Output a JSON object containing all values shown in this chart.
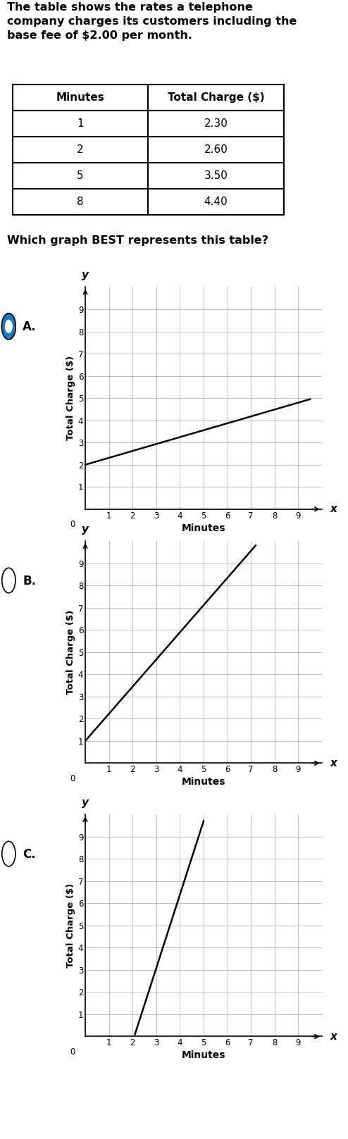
{
  "title_text": "The table shows the rates a telephone\ncompany charges its customers including the\nbase fee of $2.00 per month.",
  "table_headers": [
    "Minutes",
    "Total Charge ($)"
  ],
  "table_data": [
    [
      1,
      2.3
    ],
    [
      2,
      2.6
    ],
    [
      5,
      3.5
    ],
    [
      8,
      4.4
    ]
  ],
  "question_text": "Which graph BEST represents this table?",
  "graphs": [
    {
      "label": "A.",
      "selected": true,
      "line_x": [
        0,
        9.5
      ],
      "line_y": [
        2.0,
        4.95
      ],
      "ylabel": "Total Charge ($)",
      "xlabel": "Minutes"
    },
    {
      "label": "B.",
      "selected": false,
      "line_x": [
        0,
        7.2
      ],
      "line_y": [
        1.0,
        9.8
      ],
      "ylabel": "Total Charge ($)",
      "xlabel": "Minutes"
    },
    {
      "label": "C.",
      "selected": false,
      "line_x": [
        2.1,
        5.0
      ],
      "line_y": [
        0.1,
        9.7
      ],
      "ylabel": "Total Charge ($)",
      "xlabel": "Minutes"
    }
  ],
  "xlim": [
    0,
    10
  ],
  "ylim": [
    0,
    10
  ],
  "xticks": [
    1,
    2,
    3,
    4,
    5,
    6,
    7,
    8,
    9
  ],
  "yticks": [
    1,
    2,
    3,
    4,
    5,
    6,
    7,
    8,
    9
  ],
  "bg_color": "#ffffff",
  "grid_color": "#bbbbbb",
  "line_color": "#000000",
  "text_color": "#000000",
  "selected_circle_color": "#1a7abf"
}
